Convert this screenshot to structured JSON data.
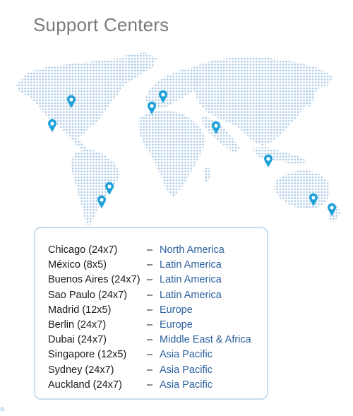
{
  "page": {
    "title": "Support Centers"
  },
  "map": {
    "dot_color": "#a9c8e4",
    "pin_color": "#1ea0d8",
    "pins": [
      "chicago",
      "mexico",
      "buenos-aires",
      "sao-paulo",
      "madrid",
      "berlin",
      "dubai",
      "singapore",
      "sydney",
      "auckland"
    ]
  },
  "centers": [
    {
      "city": "Chicago (24x7)",
      "dash": "–",
      "region": "North America"
    },
    {
      "city": "México (8x5)",
      "dash": "–",
      "region": "Latin America"
    },
    {
      "city": "Buenos Aires (24x7)",
      "dash": "–",
      "region": "Latin America"
    },
    {
      "city": "Sao Paulo (24x7)",
      "dash": "–",
      "region": "Latin America"
    },
    {
      "city": "Madrid (12x5)",
      "dash": "–",
      "region": "Europe"
    },
    {
      "city": "Berlin (24x7)",
      "dash": "–",
      "region": "Europe"
    },
    {
      "city": "Dubai (24x7)",
      "dash": "–",
      "region": "Middle East & Africa"
    },
    {
      "city": "Singapore (12x5)",
      "dash": "–",
      "region": "Asia Pacific"
    },
    {
      "city": "Sydney (24x7)",
      "dash": "–",
      "region": "Asia Pacific"
    },
    {
      "city": "Auckland (24x7)",
      "dash": "–",
      "region": "Asia Pacific"
    }
  ]
}
